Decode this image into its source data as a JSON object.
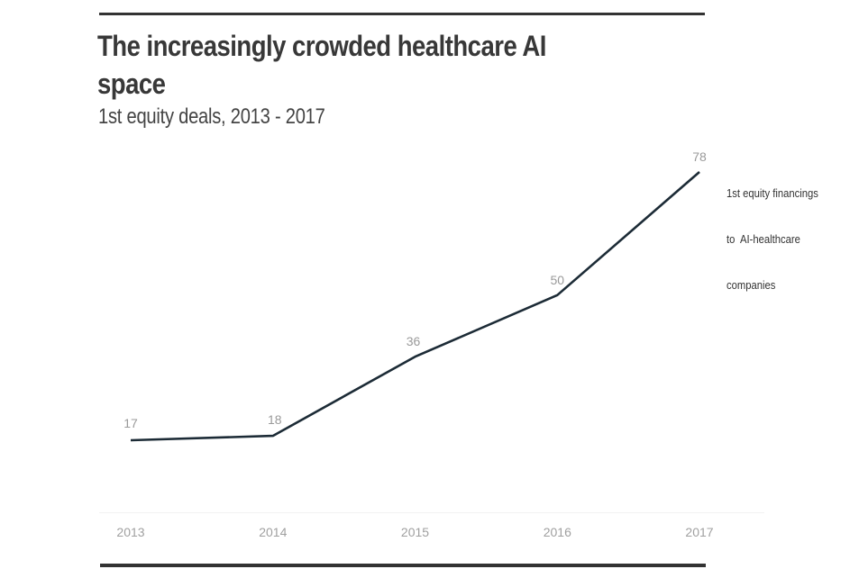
{
  "chart_data": {
    "type": "line",
    "title": "The increasingly crowded healthcare AI space",
    "subtitle": "1st equity deals, 2013 - 2017",
    "xlabel": "",
    "ylabel": "",
    "categories": [
      "2013",
      "2014",
      "2015",
      "2016",
      "2017"
    ],
    "series": [
      {
        "name": "1st equity financings to AI-healthcare companies",
        "values": [
          17,
          18,
          36,
          50,
          78
        ],
        "color": "#1c2b36"
      }
    ],
    "data_labels": [
      "17",
      "18",
      "36",
      "50",
      "78"
    ],
    "grid": false,
    "legend": "right (direct label at end of line)",
    "ylim": [
      0,
      80
    ]
  },
  "series_label_lines": [
    "1st equity financings",
    "to  AI-healthcare",
    "companies"
  ],
  "colors": {
    "line": "#1c2b36",
    "title": "#383838",
    "data_label": "#9a9a9a",
    "tick_label": "#a0a0a0",
    "rule": "#333333"
  }
}
